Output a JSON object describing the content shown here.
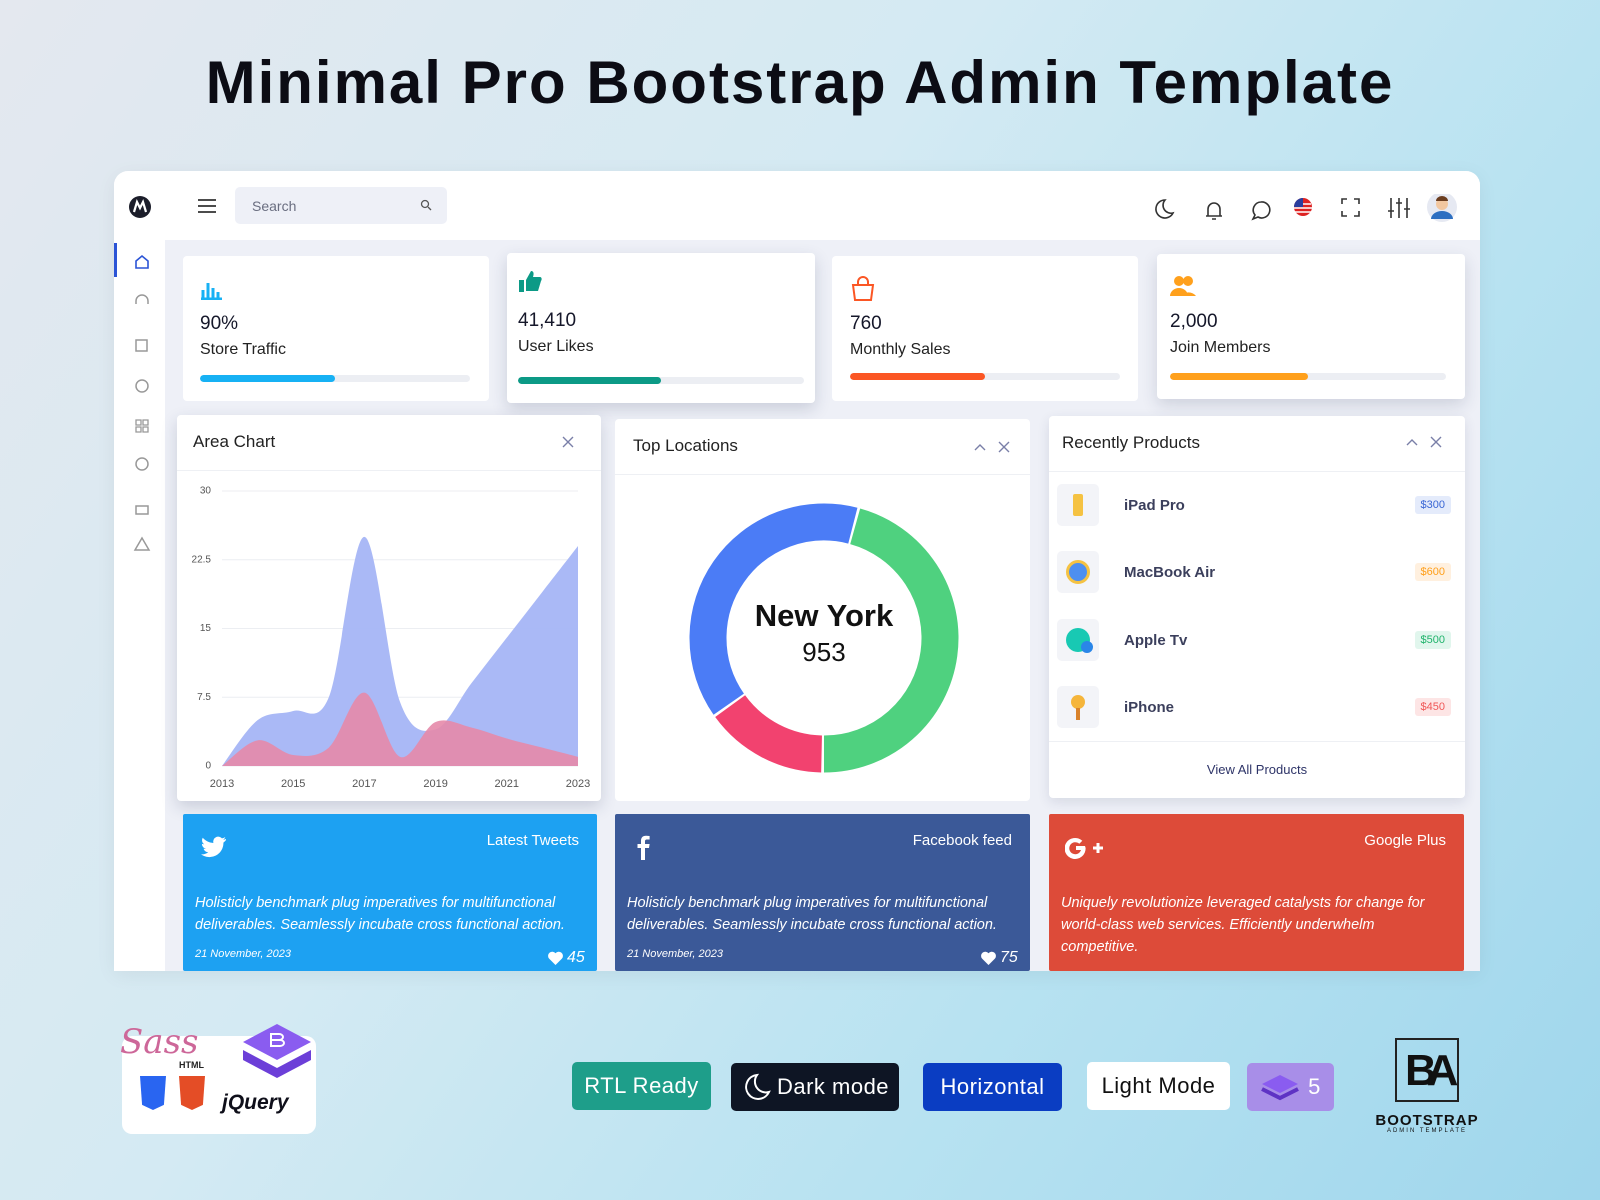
{
  "header": {
    "title": "Minimal Pro Bootstrap Admin Template"
  },
  "topbar": {
    "search_placeholder": "Search"
  },
  "stats": [
    {
      "value": "90%",
      "label": "Store Traffic",
      "progress": 50,
      "color": "#17b1f4"
    },
    {
      "value": "41,410",
      "label": "User Likes",
      "progress": 50,
      "color": "#0c9a86"
    },
    {
      "value": "760",
      "label": "Monthly Sales",
      "progress": 50,
      "color": "#fb5624"
    },
    {
      "value": "2,000",
      "label": "Join Members",
      "progress": 50,
      "color": "#ffa01c"
    }
  ],
  "area_chart": {
    "type": "area",
    "title": "Area Chart",
    "x": [
      2013,
      2014,
      2015,
      2016,
      2017,
      2018,
      2019,
      2020,
      2021,
      2022,
      2023
    ],
    "xlim": [
      2013,
      2023
    ],
    "xticks": [
      2013,
      2015,
      2017,
      2019,
      2021,
      2023
    ],
    "ylim": [
      0,
      30
    ],
    "yticks": [
      0,
      7.5,
      15,
      22.5,
      30
    ],
    "grid": true,
    "series": [
      {
        "color": "#a5b5f6",
        "values": [
          0,
          5,
          6,
          7.5,
          25,
          7,
          4,
          9,
          14,
          19,
          24
        ]
      },
      {
        "color": "#e58aaa",
        "values": [
          0,
          2.8,
          1.2,
          2,
          8,
          1,
          4.8,
          4.2,
          3,
          2,
          1
        ]
      }
    ]
  },
  "top_locations": {
    "type": "donut",
    "title": "Top Locations",
    "center_label": "New York",
    "center_value": 953,
    "values": [
      46,
      15,
      39
    ],
    "colors": [
      "#4fd17f",
      "#f2426f",
      "#4b7cf6"
    ]
  },
  "products": {
    "title": "Recently Products",
    "footer": "View All Products",
    "items": [
      {
        "name": "iPad Pro",
        "price": "$300"
      },
      {
        "name": "MacBook Air",
        "price": "$600"
      },
      {
        "name": "Apple Tv",
        "price": "$500"
      },
      {
        "name": "iPhone",
        "price": "$450"
      }
    ]
  },
  "social": [
    {
      "title": "Latest Tweets",
      "text": "Holisticly benchmark plug imperatives for multifunctional deliverables. Seamlessly incubate cross functional action.",
      "date": "21 November, 2023",
      "likes": 45
    },
    {
      "title": "Facebook feed",
      "text": "Holisticly benchmark plug imperatives for multifunctional deliverables. Seamlessly incubate cross functional action.",
      "date": "21 November, 2023",
      "likes": 75
    },
    {
      "title": "Google Plus",
      "text": "Uniquely revolutionize leveraged catalysts for change for world-class web services. Efficiently underwhelm competitive."
    }
  ],
  "badges": [
    "RTL Ready",
    "Dark mode",
    "Horizontal",
    "Light Mode"
  ],
  "bootstrap_version": 5,
  "tech": [
    "Sass",
    "HTML",
    "jQuery"
  ],
  "brand": {
    "logo": "BA",
    "name": "BOOTSTRAP",
    "tagline": "ADMIN TEMPLATE"
  }
}
